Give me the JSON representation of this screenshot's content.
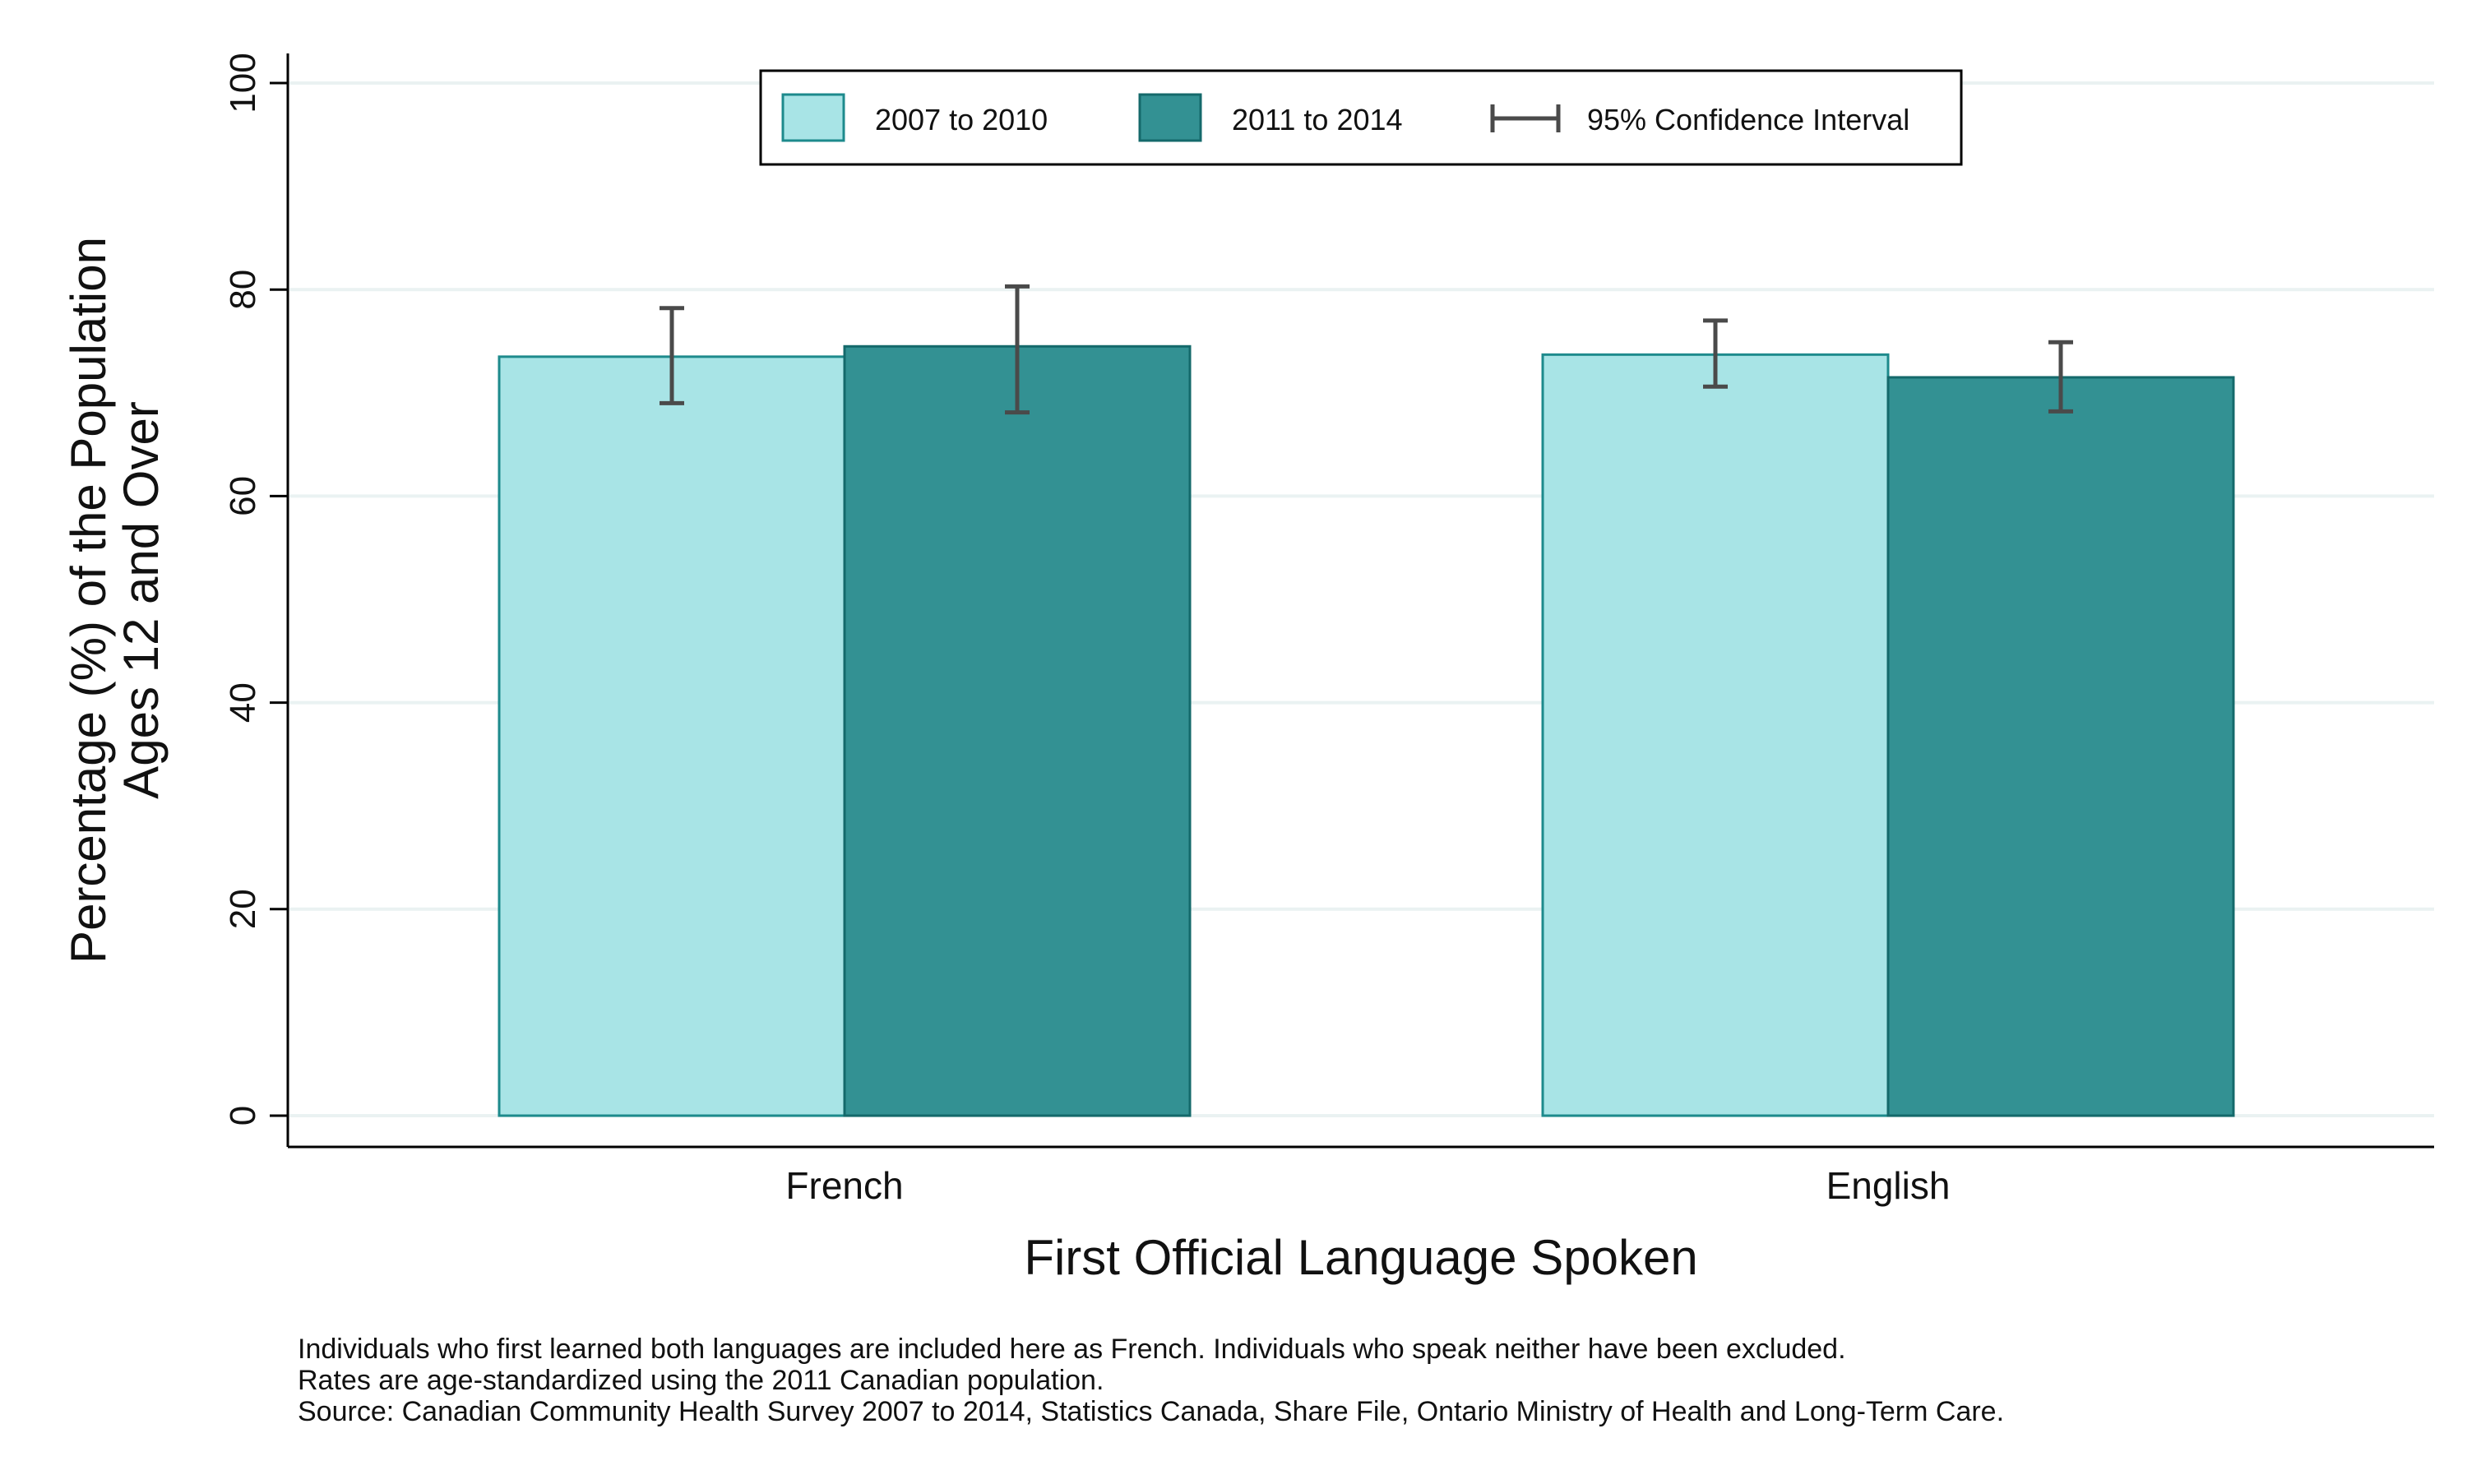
{
  "chart_data": {
    "type": "bar",
    "categories": [
      "French",
      "English"
    ],
    "series": [
      {
        "name": "2007 to 2010",
        "values": [
          73.5,
          73.7
        ],
        "ci_low": [
          69.0,
          70.6
        ],
        "ci_high": [
          78.2,
          77.0
        ],
        "color": "#a8e4e6",
        "edge": "#1d8a8c"
      },
      {
        "name": "2011 to 2014",
        "values": [
          74.5,
          71.5
        ],
        "ci_low": [
          68.1,
          68.2
        ],
        "ci_high": [
          80.3,
          74.9
        ],
        "color": "#339193",
        "edge": "#14696b"
      }
    ],
    "ci_label": "95% Confidence Interval",
    "ci_color": "#4a4a4a",
    "xlabel": "First Official Language Spoken",
    "ylabel_line1": "Percentage (%) of the Population",
    "ylabel_line2": "Ages 12 and Over",
    "ylim": [
      0,
      100
    ],
    "yticks": [
      0,
      20,
      40,
      60,
      80,
      100
    ],
    "grid": true,
    "grid_color": "#eaf2f2",
    "legend_position": "top-center",
    "notes": [
      "Individuals who first learned both languages are included here as French.  Individuals who speak neither have been excluded.",
      "Rates are age-standardized using the 2011 Canadian population.",
      "Source: Canadian Community Health Survey 2007 to 2014, Statistics Canada, Share File, Ontario Ministry of Health and Long-Term Care."
    ]
  }
}
